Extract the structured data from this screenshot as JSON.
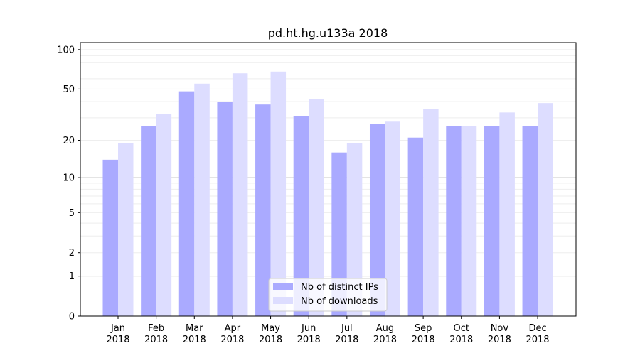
{
  "chart_data": {
    "type": "bar",
    "title": "pd.ht.hg.u133a 2018",
    "xlabel": "",
    "ylabel": "",
    "yscale": "log(1+y)",
    "ylim": [
      0,
      113
    ],
    "yticks": [
      0,
      1,
      2,
      5,
      10,
      20,
      50,
      100
    ],
    "grid": true,
    "legend_position": "bottom-center",
    "categories": [
      "Jan\n2018",
      "Feb\n2018",
      "Mar\n2018",
      "Apr\n2018",
      "May\n2018",
      "Jun\n2018",
      "Jul\n2018",
      "Aug\n2018",
      "Sep\n2018",
      "Oct\n2018",
      "Nov\n2018",
      "Dec\n2018"
    ],
    "series": [
      {
        "name": "Nb of distinct IPs",
        "color": "#aaaaff",
        "values": [
          14,
          26,
          48,
          40,
          38,
          31,
          16,
          27,
          21,
          26,
          26,
          26
        ]
      },
      {
        "name": "Nb of downloads",
        "color": "#ddddff",
        "values": [
          19,
          32,
          55,
          66,
          68,
          42,
          19,
          28,
          35,
          26,
          33,
          39
        ]
      }
    ]
  }
}
